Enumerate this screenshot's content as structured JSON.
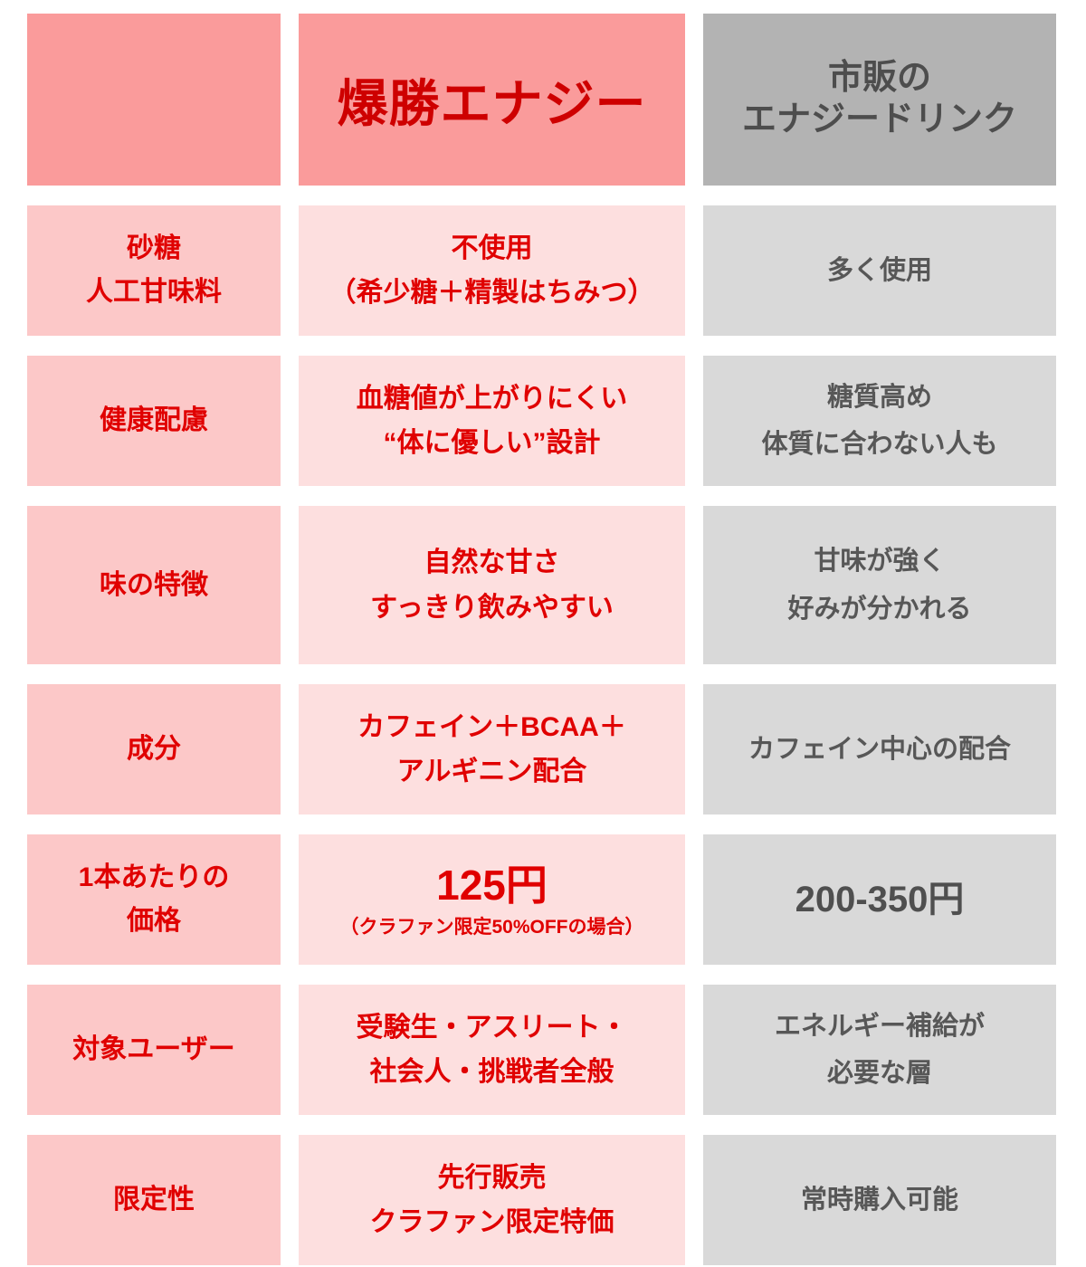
{
  "colors": {
    "header_pink_bg": "#FA9B9B",
    "header_red_text": "#CE0000",
    "label_pink_bg": "#FCC8C8",
    "product_pink_bg": "#FDDFDF",
    "cell_red_text": "#E00000",
    "header_gray_bg": "#B3B3B3",
    "header_gray_text": "#4D4D4D",
    "cell_gray_bg": "#D9D9D9",
    "cell_gray_text": "#575757",
    "page_bg": "#FFFFFF"
  },
  "header": {
    "product_title": "爆勝エナジー",
    "competitor_title_line1": "市販の",
    "competitor_title_line2": "エナジードリンク"
  },
  "rows": [
    {
      "label": [
        "砂糖",
        "人工甘味料"
      ],
      "product": [
        "不使用",
        "（希少糖＋精製はちみつ）"
      ],
      "competitor": [
        "多く使用"
      ]
    },
    {
      "label": [
        "健康配慮"
      ],
      "product": [
        "血糖値が上がりにくい",
        "“体に優しい”設計"
      ],
      "competitor": [
        "糖質高め",
        "体質に合わない人も"
      ]
    },
    {
      "label": [
        "味の特徴"
      ],
      "product": [
        "自然な甘さ",
        "すっきり飲みやすい"
      ],
      "competitor": [
        "甘味が強く",
        "好みが分かれる"
      ]
    },
    {
      "label": [
        "成分"
      ],
      "product": [
        "カフェイン＋BCAA＋",
        "アルギニン配合"
      ],
      "competitor": [
        "カフェイン中心の配合"
      ]
    },
    {
      "label": [
        "1本あたりの",
        "価格"
      ],
      "product_price": "125円",
      "product_price_note": "（クラファン限定50%OFFの場合）",
      "competitor_price": "200-350円"
    },
    {
      "label": [
        "対象ユーザー"
      ],
      "product": [
        "受験生・アスリート・",
        "社会人・挑戦者全般"
      ],
      "competitor": [
        "エネルギー補給が",
        "必要な層"
      ]
    },
    {
      "label": [
        "限定性"
      ],
      "product": [
        "先行販売",
        "クラファン限定特価"
      ],
      "competitor": [
        "常時購入可能"
      ]
    }
  ],
  "chart_data": {
    "type": "table",
    "columns": [
      "",
      "爆勝エナジー",
      "市販のエナジードリンク"
    ],
    "rows": [
      [
        "砂糖 人工甘味料",
        "不使用（希少糖＋精製はちみつ）",
        "多く使用"
      ],
      [
        "健康配慮",
        "血糖値が上がりにくい “体に優しい”設計",
        "糖質高め 体質に合わない人も"
      ],
      [
        "味の特徴",
        "自然な甘さ すっきり飲みやすい",
        "甘味が強く 好みが分かれる"
      ],
      [
        "成分",
        "カフェイン＋BCAA＋アルギニン配合",
        "カフェイン中心の配合"
      ],
      [
        "1本あたりの価格",
        "125円（クラファン限定50%OFFの場合）",
        "200-350円"
      ],
      [
        "対象ユーザー",
        "受験生・アスリート・社会人・挑戦者全般",
        "エネルギー補給が必要な層"
      ],
      [
        "限定性",
        "先行販売 クラファン限定特価",
        "常時購入可能"
      ]
    ],
    "layout_hints": {
      "highlight_column": "爆勝エナジー",
      "highlight_color": "#FDDFDF",
      "competitor_color": "#D9D9D9"
    }
  }
}
